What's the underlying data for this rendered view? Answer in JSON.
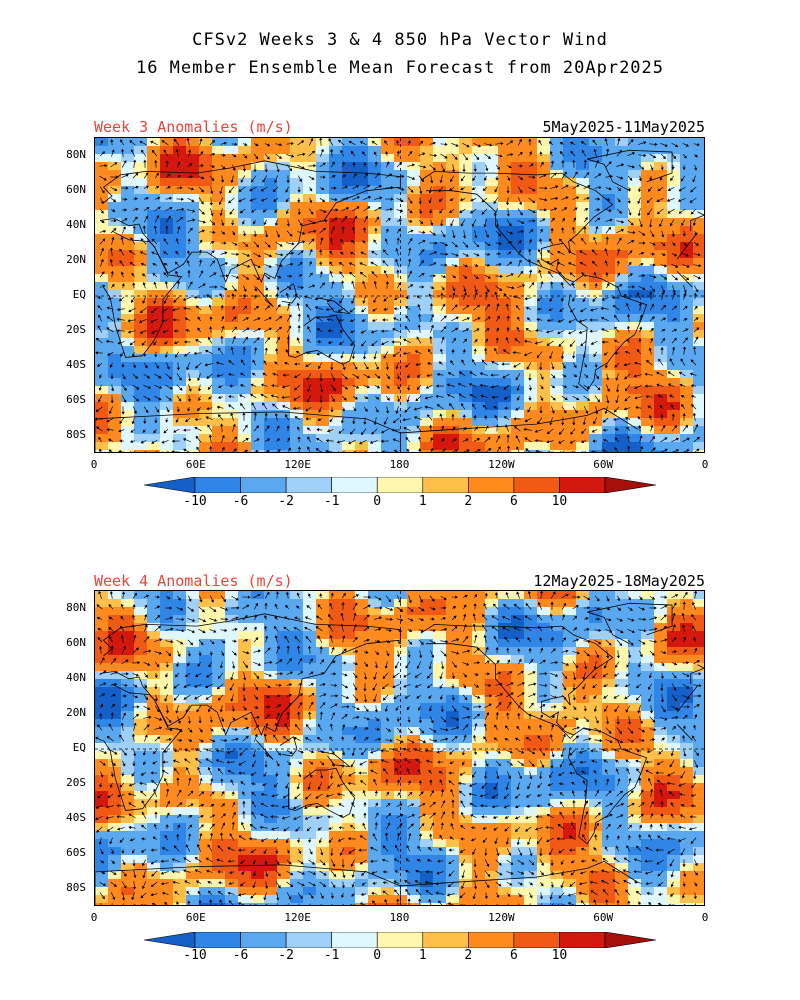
{
  "title_line1": "CFSv2 Weeks 3 & 4 850 hPa Vector Wind",
  "title_line2": "16 Member Ensemble Mean Forecast from 20Apr2025",
  "panels": [
    {
      "label": "Week 3 Anomalies (m/s)",
      "date_range": "5May2025-11May2025",
      "seed": 3
    },
    {
      "label": "Week 4 Anomalies (m/s)",
      "date_range": "12May2025-18May2025",
      "seed": 11
    }
  ],
  "lat_labels": [
    "80N",
    "60N",
    "40N",
    "20N",
    "EQ",
    "20S",
    "40S",
    "60S",
    "80S"
  ],
  "lon_labels": [
    "0",
    "60E",
    "120E",
    "180",
    "120W",
    "60W",
    "0"
  ],
  "colorbar": {
    "labels": [
      "-10",
      "-6",
      "-2",
      "-1",
      "0",
      "1",
      "2",
      "6",
      "10"
    ],
    "colors": [
      "#1560c8",
      "#2f86e6",
      "#5aa9f0",
      "#9fd0fa",
      "#dff8ff",
      "#fff7ad",
      "#ffc04a",
      "#ff8a1e",
      "#f05a14",
      "#d4180e",
      "#a60f0a"
    ]
  }
}
